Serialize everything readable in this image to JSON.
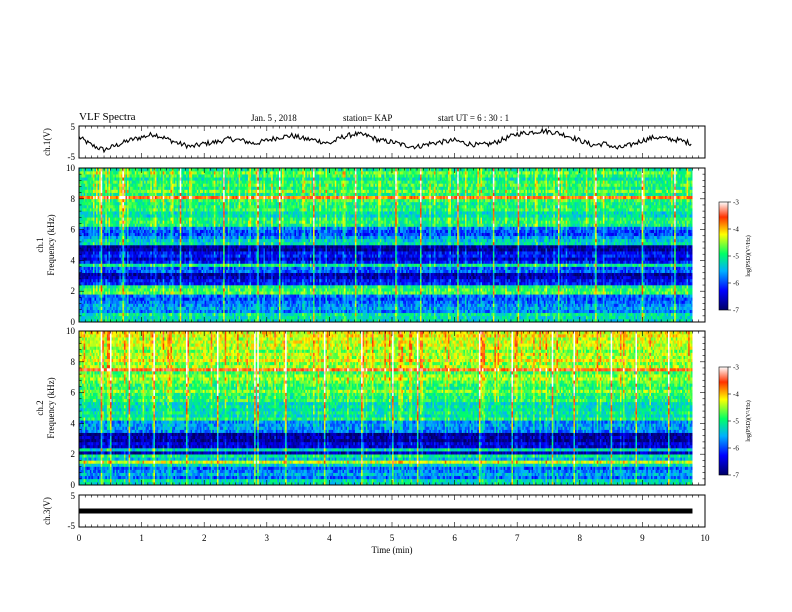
{
  "header": {
    "title": "VLF Spectra",
    "date": "Jan. 5 , 2018",
    "station": "station= KAP",
    "start": "start UT =  6 : 30 : 1"
  },
  "chart_data": [
    {
      "type": "line",
      "panel": "ch1-waveform",
      "ylabel": "ch.1(V)",
      "ylim": [
        -5,
        5
      ],
      "yticks": [
        "5",
        "-5"
      ],
      "xlim": [
        0,
        10
      ],
      "series": [
        {
          "x": [
            0,
            0.2,
            0.4,
            0.6,
            0.8,
            1.0,
            1.2,
            1.4,
            1.6,
            1.8,
            2.0,
            2.2,
            2.4,
            2.6,
            2.8,
            3.0,
            3.2,
            3.4,
            3.6,
            3.8,
            4.0,
            4.2,
            4.4,
            4.6,
            4.8,
            5.0,
            5.2,
            5.4,
            5.6,
            5.8,
            6.0,
            6.2,
            6.4,
            6.6,
            6.8,
            7.0,
            7.2,
            7.4,
            7.6,
            7.8,
            8.0,
            8.2,
            8.4,
            8.6,
            8.8,
            9.0,
            9.2,
            9.4,
            9.6,
            9.8
          ],
          "y": [
            1.5,
            -1.0,
            -2.5,
            -1.0,
            0.5,
            1.5,
            2.5,
            1.0,
            -0.5,
            -1.5,
            -0.5,
            0.0,
            1.0,
            0.5,
            -0.5,
            0.5,
            1.5,
            2.0,
            1.0,
            0.5,
            -0.5,
            1.5,
            2.5,
            2.0,
            0.5,
            0.0,
            -1.0,
            -1.5,
            -0.5,
            0.0,
            0.5,
            -0.5,
            -1.0,
            -0.5,
            1.0,
            2.5,
            3.0,
            3.5,
            3.0,
            2.0,
            0.5,
            -1.0,
            -0.5,
            -2.0,
            -1.0,
            0.5,
            1.5,
            1.0,
            0.5,
            -0.5
          ]
        }
      ]
    },
    {
      "type": "heatmap",
      "panel": "ch1-spectrogram",
      "ylabel": "ch.1",
      "ylabel2": "Frequency (kHz)",
      "ylim": [
        0,
        10
      ],
      "yticks": [
        "0",
        "2",
        "4",
        "6",
        "8",
        "10"
      ],
      "xlim": [
        0,
        9.8
      ],
      "colorbar": {
        "label": "log(PSD)(V²/Hz)",
        "range": [
          -7,
          -3
        ],
        "ticks": [
          "-3",
          "-4",
          "-5",
          "-6",
          "-7"
        ]
      },
      "bands_khz": [
        {
          "from": 0,
          "to": 0.5,
          "level": -5.2
        },
        {
          "from": 0.5,
          "to": 1.8,
          "level": -5.8
        },
        {
          "from": 1.8,
          "to": 2.3,
          "level": -4.8
        },
        {
          "from": 2.3,
          "to": 2.7,
          "level": -6.2
        },
        {
          "from": 2.7,
          "to": 3.1,
          "level": -6.8
        },
        {
          "from": 3.1,
          "to": 3.5,
          "level": -6.0
        },
        {
          "from": 3.5,
          "to": 3.8,
          "level": -5.0
        },
        {
          "from": 3.8,
          "to": 4.5,
          "level": -6.4
        },
        {
          "from": 4.5,
          "to": 5.0,
          "level": -6.6
        },
        {
          "from": 5.0,
          "to": 5.4,
          "level": -5.4
        },
        {
          "from": 5.4,
          "to": 6.2,
          "level": -5.9
        },
        {
          "from": 6.2,
          "to": 7.5,
          "level": -5.1
        },
        {
          "from": 7.5,
          "to": 10,
          "level": -4.9
        }
      ],
      "impulses_min": [
        0.35,
        0.7,
        1.6,
        2.3,
        2.85,
        3.2,
        3.75,
        4.4,
        5.05,
        5.45,
        6.05,
        6.6,
        7.0,
        7.65,
        8.25,
        9.0,
        9.5
      ]
    },
    {
      "type": "heatmap",
      "panel": "ch2-spectrogram",
      "ylabel": "ch.2",
      "ylabel2": "Frequency (kHz)",
      "ylim": [
        0,
        10
      ],
      "yticks": [
        "0",
        "2",
        "4",
        "6",
        "8",
        "10"
      ],
      "xlim": [
        0,
        9.8
      ],
      "colorbar": {
        "label": "log(PSD)(V²/Hz)",
        "range": [
          -7,
          -3
        ],
        "ticks": [
          "-3",
          "-4",
          "-5",
          "-6",
          "-7"
        ]
      },
      "bands_khz": [
        {
          "from": 0,
          "to": 0.4,
          "level": -5.0
        },
        {
          "from": 0.4,
          "to": 1.2,
          "level": -5.7
        },
        {
          "from": 1.2,
          "to": 2.0,
          "level": -5.3
        },
        {
          "from": 2.0,
          "to": 2.8,
          "level": -6.5
        },
        {
          "from": 2.8,
          "to": 3.4,
          "level": -6.8
        },
        {
          "from": 3.4,
          "to": 4.2,
          "level": -5.6
        },
        {
          "from": 4.2,
          "to": 6.0,
          "level": -5.1
        },
        {
          "from": 6.0,
          "to": 8.0,
          "level": -4.7
        },
        {
          "from": 8.0,
          "to": 10,
          "level": -4.4
        }
      ],
      "impulses_min": [
        0.35,
        0.5,
        0.8,
        1.2,
        1.7,
        2.2,
        2.8,
        2.85,
        3.3,
        3.9,
        4.5,
        5.0,
        5.4,
        6.4,
        6.9,
        7.55,
        7.9,
        8.5,
        8.9,
        9.4
      ]
    },
    {
      "type": "line",
      "panel": "ch3-waveform",
      "ylabel": "ch.3(V)",
      "ylim": [
        -5,
        5
      ],
      "yticks": [
        "5",
        "0",
        "-5"
      ],
      "xlim": [
        0,
        10
      ],
      "xlabel": "Time (min)",
      "xticks": [
        "0",
        "1",
        "2",
        "3",
        "4",
        "5",
        "6",
        "7",
        "8",
        "9",
        "10"
      ],
      "series": [
        {
          "x": [
            0,
            9.8
          ],
          "y": [
            0,
            0
          ]
        }
      ]
    }
  ]
}
